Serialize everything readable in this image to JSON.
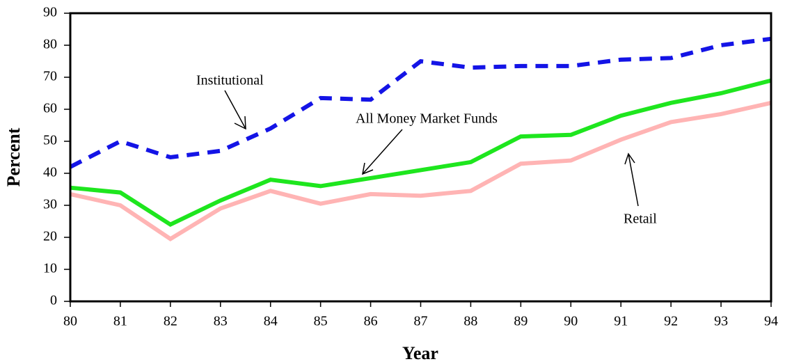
{
  "chart_data": {
    "type": "line",
    "x_label": "Year",
    "y_label": "Percent",
    "categories": [
      "80",
      "81",
      "82",
      "83",
      "84",
      "85",
      "86",
      "87",
      "88",
      "89",
      "90",
      "91",
      "92",
      "93",
      "94"
    ],
    "series": [
      {
        "name": "Institutional",
        "color": "#1414e6",
        "dash": true,
        "values": [
          42,
          50,
          45,
          47,
          54,
          63.5,
          63,
          75,
          73,
          73.5,
          73.5,
          75.5,
          76,
          80,
          82
        ]
      },
      {
        "name": "All Money Market Funds",
        "color": "#1ee61e",
        "dash": false,
        "values": [
          35.5,
          34,
          24,
          31.5,
          38,
          36,
          38.5,
          41,
          43.5,
          51.5,
          52,
          58,
          62,
          65,
          69
        ]
      },
      {
        "name": "Retail",
        "color": "#ffb4b4",
        "dash": false,
        "values": [
          33.5,
          30,
          19.5,
          29,
          34.5,
          30.5,
          33.5,
          33,
          34.5,
          43,
          44,
          50.5,
          56,
          58.5,
          62
        ]
      }
    ],
    "ylim": [
      0,
      90
    ],
    "yticks": [
      0,
      10,
      20,
      30,
      40,
      50,
      60,
      70,
      80,
      90
    ],
    "grid": false
  }
}
